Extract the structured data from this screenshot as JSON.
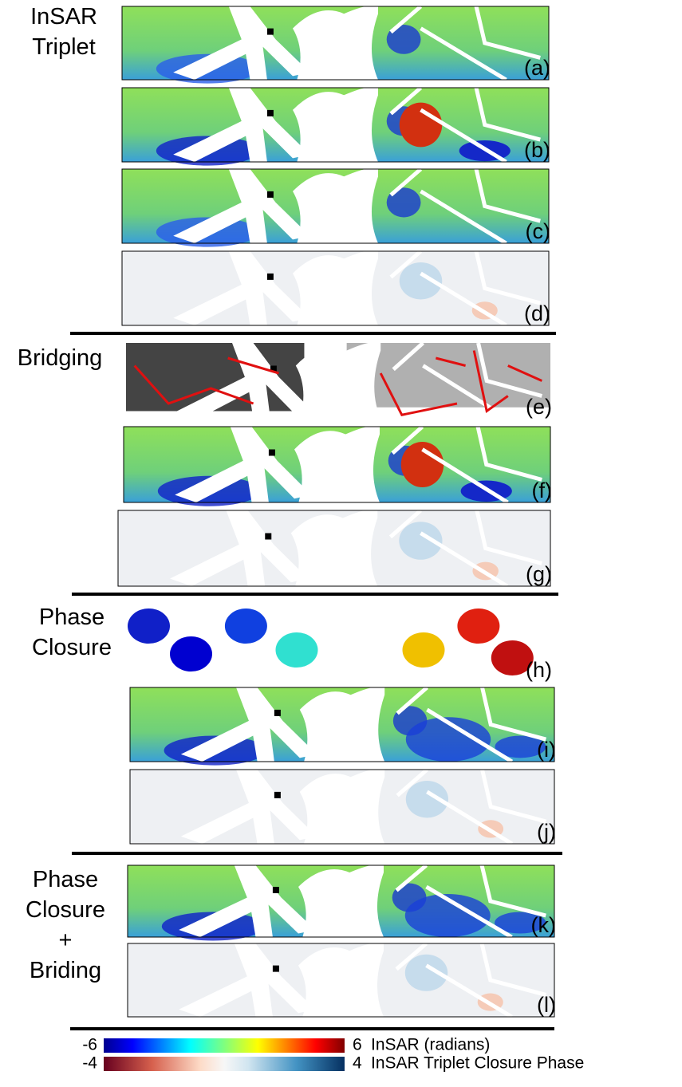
{
  "sections": [
    {
      "label": [
        "InSAR",
        "Triplet"
      ],
      "panels": [
        "(a)",
        "(b)",
        "(c)",
        "(d)"
      ]
    },
    {
      "label": [
        "Bridging"
      ],
      "panels": [
        "(e)",
        "(f)",
        "(g)"
      ]
    },
    {
      "label": [
        "Phase",
        "Closure"
      ],
      "panels": [
        "(h)",
        "(i)",
        "(j)"
      ]
    },
    {
      "label": [
        "Phase",
        "Closure",
        "+",
        "Briding"
      ],
      "panels": [
        "(k)",
        "(l)"
      ]
    }
  ],
  "colorbars": [
    {
      "min": -6,
      "max": 6,
      "title": "InSAR (radians)"
    },
    {
      "min": -4,
      "max": 4,
      "title": "InSAR Triplet Closure Phase"
    }
  ]
}
